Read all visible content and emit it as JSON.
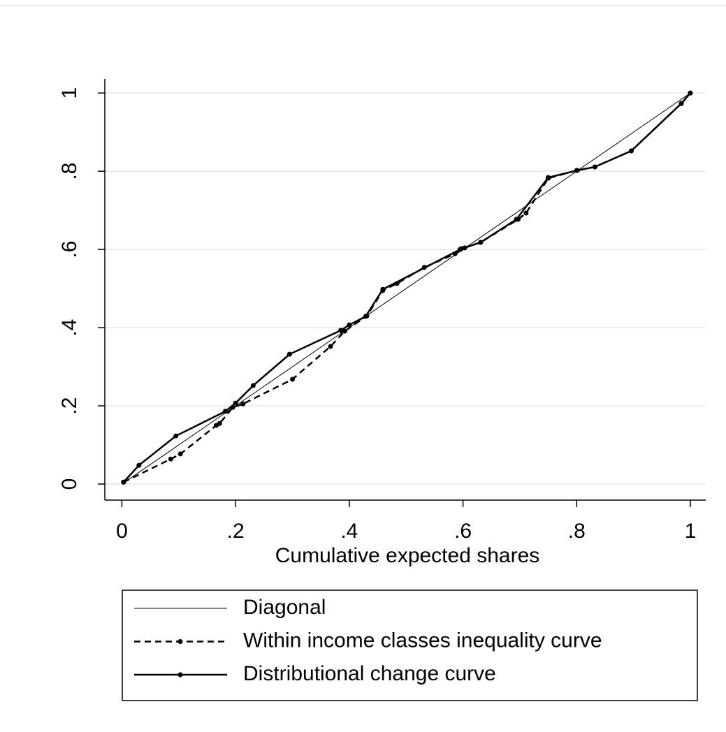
{
  "chart_data": {
    "type": "line",
    "x_label": "Cumulative expected shares",
    "xlim": [
      -0.03,
      1.027
    ],
    "ylim": [
      -0.041,
      1.036
    ],
    "xticks": [
      0,
      {
        "value": 0.2,
        "label": ".2"
      },
      {
        "value": 0.4,
        "label": ".4"
      },
      {
        "value": 0.6,
        "label": ".6"
      },
      {
        "value": 0.8,
        "label": ".8"
      },
      1
    ],
    "yticks": [
      0,
      {
        "value": 0.2,
        "label": ".2"
      },
      {
        "value": 0.4,
        "label": ".4"
      },
      {
        "value": 0.6,
        "label": ".6"
      },
      {
        "value": 0.8,
        "label": ".8"
      },
      1
    ],
    "grid": true,
    "series": [
      {
        "name": "Diagonal",
        "color": "#000000",
        "width": 1,
        "dash": false,
        "markers": false,
        "x": [
          0,
          1
        ],
        "values": [
          0,
          1
        ]
      },
      {
        "name": "Within income classes inequality curve",
        "color": "#000000",
        "width": 2.5,
        "dash": true,
        "markers": true,
        "x": [
          0.003,
          0.086,
          0.103,
          0.166,
          0.172,
          0.195,
          0.213,
          0.3,
          0.367,
          0.392,
          0.431,
          0.459,
          0.484,
          0.532,
          0.586,
          0.597,
          0.631,
          0.697,
          0.711,
          0.75,
          0.8,
          0.832,
          0.896,
          0.984,
          1
        ],
        "values": [
          0.005,
          0.064,
          0.077,
          0.15,
          0.155,
          0.196,
          0.205,
          0.268,
          0.352,
          0.391,
          0.43,
          0.495,
          0.513,
          0.554,
          0.589,
          0.602,
          0.618,
          0.677,
          0.693,
          0.782,
          0.802,
          0.811,
          0.852,
          0.973,
          1
        ]
      },
      {
        "name": "Distributional change curve",
        "color": "#000000",
        "width": 2.5,
        "dash": false,
        "markers": true,
        "x": [
          0.003,
          0.03,
          0.095,
          0.182,
          0.2,
          0.231,
          0.295,
          0.385,
          0.4,
          0.429,
          0.459,
          0.595,
          0.603,
          0.631,
          0.694,
          0.75,
          0.801,
          0.832,
          0.896,
          0.984,
          1
        ],
        "values": [
          0.005,
          0.048,
          0.123,
          0.186,
          0.207,
          0.252,
          0.332,
          0.393,
          0.407,
          0.429,
          0.498,
          0.6,
          0.604,
          0.618,
          0.677,
          0.784,
          0.802,
          0.811,
          0.852,
          0.973,
          1
        ]
      }
    ]
  }
}
